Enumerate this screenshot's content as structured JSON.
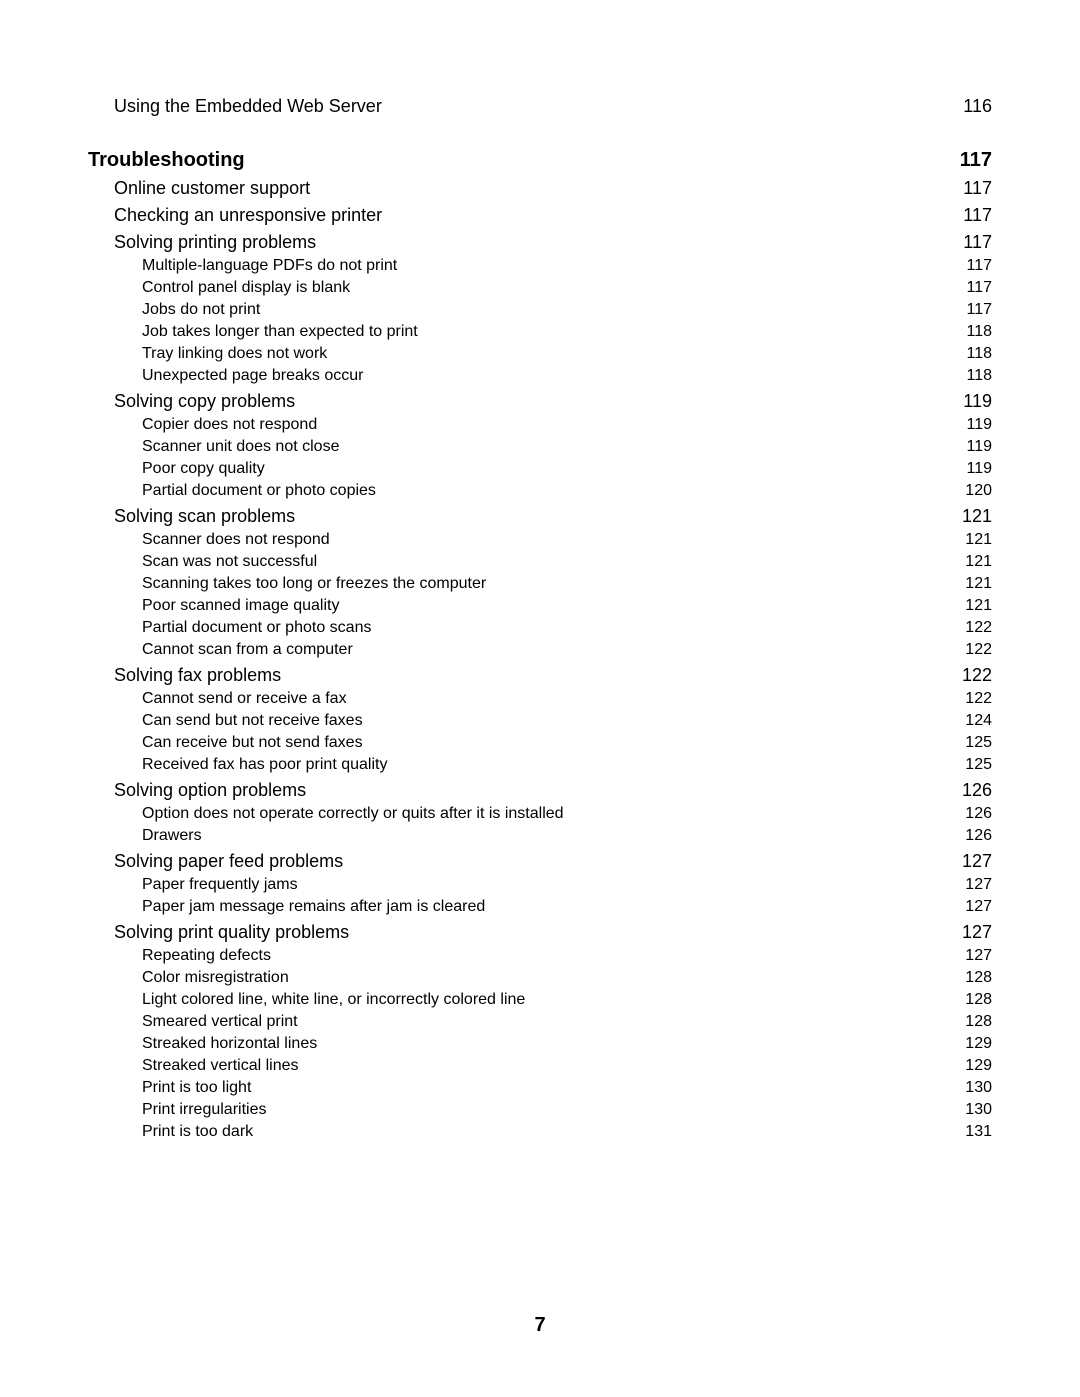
{
  "page_number": "7",
  "toc": [
    {
      "level": 1,
      "title": "Using the Embedded Web Server",
      "page": "116"
    },
    {
      "level": 0,
      "title": "Troubleshooting",
      "page": "117"
    },
    {
      "level": 1,
      "title": "Online customer support",
      "page": "117"
    },
    {
      "level": 1,
      "title": "Checking an unresponsive printer",
      "page": "117"
    },
    {
      "level": 1,
      "title": "Solving printing problems",
      "page": "117"
    },
    {
      "level": 2,
      "title": "Multiple-language PDFs do not print",
      "page": "117"
    },
    {
      "level": 2,
      "title": "Control panel display is blank",
      "page": "117"
    },
    {
      "level": 2,
      "title": "Jobs do not print",
      "page": "117"
    },
    {
      "level": 2,
      "title": "Job takes longer than expected to print",
      "page": "118"
    },
    {
      "level": 2,
      "title": "Tray linking does not work",
      "page": "118"
    },
    {
      "level": 2,
      "title": "Unexpected page breaks occur",
      "page": "118"
    },
    {
      "level": 1,
      "title": "Solving copy problems",
      "page": "119"
    },
    {
      "level": 2,
      "title": "Copier does not respond",
      "page": "119"
    },
    {
      "level": 2,
      "title": "Scanner unit does not close",
      "page": "119"
    },
    {
      "level": 2,
      "title": "Poor copy quality",
      "page": "119"
    },
    {
      "level": 2,
      "title": "Partial document or photo copies",
      "page": "120"
    },
    {
      "level": 1,
      "title": "Solving scan problems",
      "page": "121"
    },
    {
      "level": 2,
      "title": "Scanner does not respond",
      "page": "121"
    },
    {
      "level": 2,
      "title": "Scan was not successful",
      "page": "121"
    },
    {
      "level": 2,
      "title": "Scanning takes too long or freezes the computer",
      "page": "121"
    },
    {
      "level": 2,
      "title": "Poor scanned image quality",
      "page": "121"
    },
    {
      "level": 2,
      "title": "Partial document or photo scans",
      "page": "122"
    },
    {
      "level": 2,
      "title": "Cannot scan from a computer",
      "page": "122"
    },
    {
      "level": 1,
      "title": "Solving fax problems",
      "page": "122"
    },
    {
      "level": 2,
      "title": "Cannot send or receive a fax",
      "page": "122"
    },
    {
      "level": 2,
      "title": "Can send but not receive faxes",
      "page": "124"
    },
    {
      "level": 2,
      "title": "Can receive but not send faxes",
      "page": "125"
    },
    {
      "level": 2,
      "title": "Received fax has poor print quality",
      "page": "125"
    },
    {
      "level": 1,
      "title": "Solving option problems",
      "page": "126"
    },
    {
      "level": 2,
      "title": "Option does not operate correctly or quits after it is installed",
      "page": "126"
    },
    {
      "level": 2,
      "title": "Drawers",
      "page": "126"
    },
    {
      "level": 1,
      "title": "Solving paper feed problems",
      "page": "127"
    },
    {
      "level": 2,
      "title": "Paper frequently jams",
      "page": "127"
    },
    {
      "level": 2,
      "title": "Paper jam message remains after jam is cleared",
      "page": "127"
    },
    {
      "level": 1,
      "title": "Solving print quality problems",
      "page": "127"
    },
    {
      "level": 2,
      "title": "Repeating defects",
      "page": "127"
    },
    {
      "level": 2,
      "title": "Color misregistration",
      "page": "128"
    },
    {
      "level": 2,
      "title": "Light colored line, white line, or incorrectly colored line",
      "page": "128"
    },
    {
      "level": 2,
      "title": "Smeared vertical print",
      "page": "128"
    },
    {
      "level": 2,
      "title": "Streaked horizontal lines",
      "page": "129"
    },
    {
      "level": 2,
      "title": "Streaked vertical lines",
      "page": "129"
    },
    {
      "level": 2,
      "title": "Print is too light",
      "page": "130"
    },
    {
      "level": 2,
      "title": "Print irregularities",
      "page": "130"
    },
    {
      "level": 2,
      "title": "Print is too dark",
      "page": "131"
    }
  ]
}
